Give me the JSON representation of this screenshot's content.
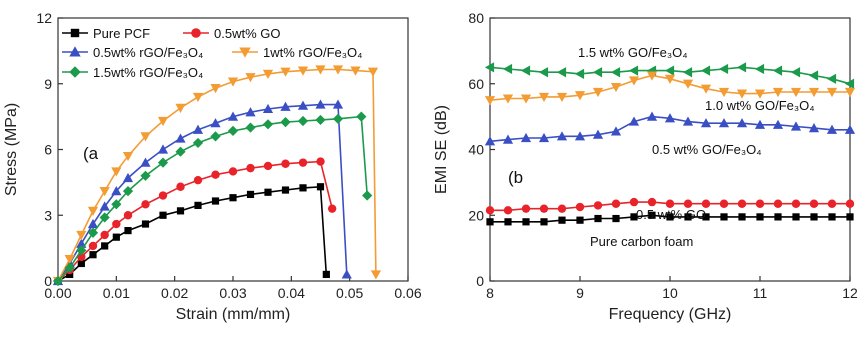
{
  "chart_data": [
    {
      "type": "line",
      "panel_label": "(a",
      "xlabel": "Strain (mm/mm)",
      "ylabel": "Stress (MPa)",
      "xlim": [
        0,
        0.06
      ],
      "ylim": [
        0,
        12
      ],
      "xticks": [
        "0.00",
        "0.01",
        "0.02",
        "0.03",
        "0.04",
        "0.05",
        "0.06"
      ],
      "yticks": [
        "0",
        "3",
        "6",
        "9",
        "12"
      ],
      "legend_placement": "top-left",
      "grid": false,
      "series": [
        {
          "name": "Pure PCF",
          "color": "#000000",
          "marker": "square",
          "x": [
            0,
            0.002,
            0.004,
            0.006,
            0.008,
            0.01,
            0.012,
            0.015,
            0.018,
            0.021,
            0.024,
            0.027,
            0.03,
            0.033,
            0.036,
            0.039,
            0.042,
            0.045,
            0.046
          ],
          "y": [
            0,
            0.3,
            0.8,
            1.2,
            1.6,
            2.0,
            2.3,
            2.6,
            3.0,
            3.2,
            3.45,
            3.65,
            3.8,
            3.95,
            4.05,
            4.15,
            4.25,
            4.3,
            0.3
          ]
        },
        {
          "name": "0.5wt% GO",
          "color": "#e8242a",
          "marker": "circle",
          "x": [
            0,
            0.002,
            0.004,
            0.006,
            0.008,
            0.01,
            0.012,
            0.015,
            0.018,
            0.021,
            0.024,
            0.027,
            0.03,
            0.033,
            0.036,
            0.039,
            0.042,
            0.045,
            0.047
          ],
          "y": [
            0,
            0.5,
            1.1,
            1.6,
            2.1,
            2.6,
            3.0,
            3.5,
            3.9,
            4.3,
            4.6,
            4.85,
            5.0,
            5.15,
            5.25,
            5.35,
            5.4,
            5.45,
            3.3
          ]
        },
        {
          "name": "0.5wt% rGO/Fe₃O₄",
          "color": "#3a4fc4",
          "marker": "triangle-up",
          "x": [
            0,
            0.002,
            0.004,
            0.006,
            0.008,
            0.01,
            0.012,
            0.015,
            0.018,
            0.021,
            0.024,
            0.027,
            0.03,
            0.033,
            0.036,
            0.039,
            0.042,
            0.045,
            0.048,
            0.0495
          ],
          "y": [
            0,
            0.8,
            1.7,
            2.6,
            3.4,
            4.1,
            4.7,
            5.4,
            6.0,
            6.5,
            6.9,
            7.2,
            7.5,
            7.7,
            7.85,
            7.95,
            8.0,
            8.05,
            8.05,
            0.3
          ]
        },
        {
          "name": "1wt% rGO/Fe₃O₄",
          "color": "#f39c34",
          "marker": "triangle-down",
          "x": [
            0,
            0.002,
            0.004,
            0.006,
            0.008,
            0.01,
            0.012,
            0.015,
            0.018,
            0.021,
            0.024,
            0.027,
            0.03,
            0.033,
            0.036,
            0.039,
            0.042,
            0.045,
            0.048,
            0.051,
            0.054,
            0.0545
          ],
          "y": [
            0,
            1.0,
            2.1,
            3.2,
            4.1,
            5.0,
            5.7,
            6.6,
            7.3,
            7.9,
            8.4,
            8.8,
            9.1,
            9.3,
            9.45,
            9.55,
            9.6,
            9.65,
            9.65,
            9.6,
            9.55,
            0.3
          ]
        },
        {
          "name": "1.5wt% rGO/Fe₃O₄",
          "color": "#1a9a4a",
          "marker": "diamond",
          "x": [
            0,
            0.002,
            0.004,
            0.006,
            0.008,
            0.01,
            0.012,
            0.015,
            0.018,
            0.021,
            0.024,
            0.027,
            0.03,
            0.033,
            0.036,
            0.039,
            0.042,
            0.045,
            0.048,
            0.052,
            0.053
          ],
          "y": [
            0,
            0.6,
            1.4,
            2.2,
            2.9,
            3.5,
            4.1,
            4.8,
            5.4,
            5.9,
            6.3,
            6.6,
            6.85,
            7.0,
            7.15,
            7.25,
            7.3,
            7.35,
            7.4,
            7.5,
            3.9
          ]
        }
      ]
    },
    {
      "type": "line",
      "panel_label": "(b",
      "xlabel": "Frequency (GHz)",
      "ylabel": "EMI SE (dB)",
      "xlim": [
        8,
        12
      ],
      "ylim": [
        0,
        80
      ],
      "xticks": [
        "8",
        "9",
        "10",
        "11",
        "12"
      ],
      "yticks": [
        "0",
        "20",
        "40",
        "60",
        "80"
      ],
      "grid": false,
      "series": [
        {
          "name": "1.5 wt% GO/Fe₃O₄",
          "color": "#1a9a4a",
          "marker": "triangle-left",
          "x": [
            8.0,
            8.2,
            8.4,
            8.6,
            8.8,
            9.0,
            9.2,
            9.4,
            9.6,
            9.8,
            10.0,
            10.2,
            10.4,
            10.6,
            10.8,
            11.0,
            11.2,
            11.4,
            11.6,
            11.8,
            12.0
          ],
          "y": [
            65,
            64.5,
            64,
            63.5,
            63.5,
            63,
            63.5,
            63.5,
            64,
            64,
            64,
            63.5,
            64,
            64.5,
            65,
            64.5,
            64,
            63.5,
            62.5,
            61.5,
            60
          ]
        },
        {
          "name": "1.0 wt% GO/Fe₃O₄",
          "color": "#f39c34",
          "marker": "triangle-down",
          "x": [
            8.0,
            8.2,
            8.4,
            8.6,
            8.8,
            9.0,
            9.2,
            9.4,
            9.6,
            9.8,
            10.0,
            10.2,
            10.4,
            10.6,
            10.8,
            11.0,
            11.2,
            11.4,
            11.6,
            11.8,
            12.0
          ],
          "y": [
            55,
            55.5,
            55.5,
            56,
            56,
            56.5,
            57.5,
            59,
            61,
            62.5,
            61.5,
            60,
            58.5,
            57.5,
            57,
            57,
            57.5,
            57.5,
            57.5,
            57.5,
            57.5
          ]
        },
        {
          "name": "0.5 wt% GO/Fe₃O₄",
          "color": "#3a4fc4",
          "marker": "triangle-up",
          "x": [
            8.0,
            8.2,
            8.4,
            8.6,
            8.8,
            9.0,
            9.2,
            9.4,
            9.6,
            9.8,
            10.0,
            10.2,
            10.4,
            10.6,
            10.8,
            11.0,
            11.2,
            11.4,
            11.6,
            11.8,
            12.0
          ],
          "y": [
            42.5,
            43,
            43.5,
            43.5,
            44,
            44,
            44.5,
            45.5,
            48.5,
            50,
            49.5,
            48.5,
            48,
            48,
            48,
            47.5,
            47.5,
            47,
            46.5,
            46,
            46
          ]
        },
        {
          "name": "0.5 wt% GO",
          "color": "#e8242a",
          "marker": "circle",
          "x": [
            8.0,
            8.2,
            8.4,
            8.6,
            8.8,
            9.0,
            9.2,
            9.4,
            9.6,
            9.8,
            10.0,
            10.2,
            10.4,
            10.6,
            10.8,
            11.0,
            11.2,
            11.4,
            11.6,
            11.8,
            12.0
          ],
          "y": [
            21.5,
            21.5,
            22,
            22,
            22,
            22.5,
            23,
            23.5,
            24,
            24,
            23.5,
            23.5,
            23.5,
            23.5,
            23.5,
            23.5,
            23.5,
            23.5,
            23.5,
            23.5,
            23.5
          ]
        },
        {
          "name": "Pure carbon foam",
          "color": "#000000",
          "marker": "square",
          "x": [
            8.0,
            8.2,
            8.4,
            8.6,
            8.8,
            9.0,
            9.2,
            9.4,
            9.6,
            9.8,
            10.0,
            10.2,
            10.4,
            10.6,
            10.8,
            11.0,
            11.2,
            11.4,
            11.6,
            11.8,
            12.0
          ],
          "y": [
            18,
            18,
            18,
            18,
            18.5,
            18.5,
            19,
            19,
            19.5,
            20,
            19.5,
            19.5,
            19.5,
            19.5,
            19.5,
            19.5,
            19.5,
            19.5,
            19.5,
            19.5,
            19.5
          ]
        }
      ]
    }
  ]
}
